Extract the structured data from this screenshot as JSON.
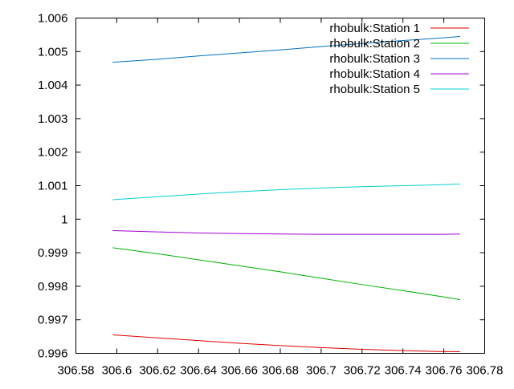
{
  "chart_data": {
    "type": "line",
    "title": "",
    "xlabel": "",
    "ylabel": "",
    "xlim": [
      306.58,
      306.78
    ],
    "ylim": [
      0.996,
      1.006
    ],
    "x_ticks": [
      306.58,
      306.6,
      306.62,
      306.64,
      306.66,
      306.68,
      306.7,
      306.72,
      306.74,
      306.76,
      306.78
    ],
    "x_tick_labels": [
      "306.58",
      "306.6",
      "306.62",
      "306.64",
      "306.66",
      "306.68",
      "306.7",
      "306.72",
      "306.74",
      "306.76",
      "306.78"
    ],
    "y_ticks": [
      0.996,
      0.997,
      0.998,
      0.999,
      1.0,
      1.001,
      1.002,
      1.003,
      1.004,
      1.005,
      1.006
    ],
    "y_tick_labels": [
      "0.996",
      "0.997",
      "0.998",
      "0.999",
      "1",
      "1.001",
      "1.002",
      "1.003",
      "1.004",
      "1.005",
      "1.006"
    ],
    "grid": false,
    "legend_position": "top-right",
    "series": [
      {
        "name": "rhobulk:Station 1",
        "color": "#e00000",
        "x": [
          306.598,
          306.62,
          306.64,
          306.66,
          306.68,
          306.7,
          306.72,
          306.74,
          306.76,
          306.768
        ],
        "y": [
          0.99655,
          0.99646,
          0.99638,
          0.9963,
          0.99623,
          0.99617,
          0.99612,
          0.99608,
          0.99605,
          0.99605
        ]
      },
      {
        "name": "rhobulk:Station 2",
        "color": "#00b000",
        "x": [
          306.598,
          306.62,
          306.64,
          306.66,
          306.68,
          306.7,
          306.72,
          306.74,
          306.76,
          306.768
        ],
        "y": [
          0.99915,
          0.99897,
          0.99879,
          0.99861,
          0.99843,
          0.99824,
          0.99805,
          0.99787,
          0.99768,
          0.9976
        ]
      },
      {
        "name": "rhobulk:Station 3",
        "color": "#0070c0",
        "x": [
          306.598,
          306.62,
          306.64,
          306.66,
          306.68,
          306.7,
          306.72,
          306.74,
          306.76,
          306.768
        ],
        "y": [
          1.00468,
          1.00477,
          1.00487,
          1.00496,
          1.00505,
          1.00515,
          1.00524,
          1.00533,
          1.00541,
          1.00545
        ]
      },
      {
        "name": "rhobulk:Station 4",
        "color": "#a000d0",
        "x": [
          306.598,
          306.62,
          306.64,
          306.66,
          306.68,
          306.7,
          306.72,
          306.74,
          306.76,
          306.768
        ],
        "y": [
          0.99966,
          0.99962,
          0.99959,
          0.99957,
          0.99956,
          0.99955,
          0.99955,
          0.99955,
          0.99955,
          0.99956
        ]
      },
      {
        "name": "rhobulk:Station 5",
        "color": "#00d0d0",
        "x": [
          306.598,
          306.62,
          306.64,
          306.66,
          306.68,
          306.7,
          306.72,
          306.74,
          306.76,
          306.768
        ],
        "y": [
          1.00058,
          1.00067,
          1.00075,
          1.00082,
          1.00088,
          1.00093,
          1.00097,
          1.001,
          1.00103,
          1.00105
        ]
      }
    ]
  }
}
